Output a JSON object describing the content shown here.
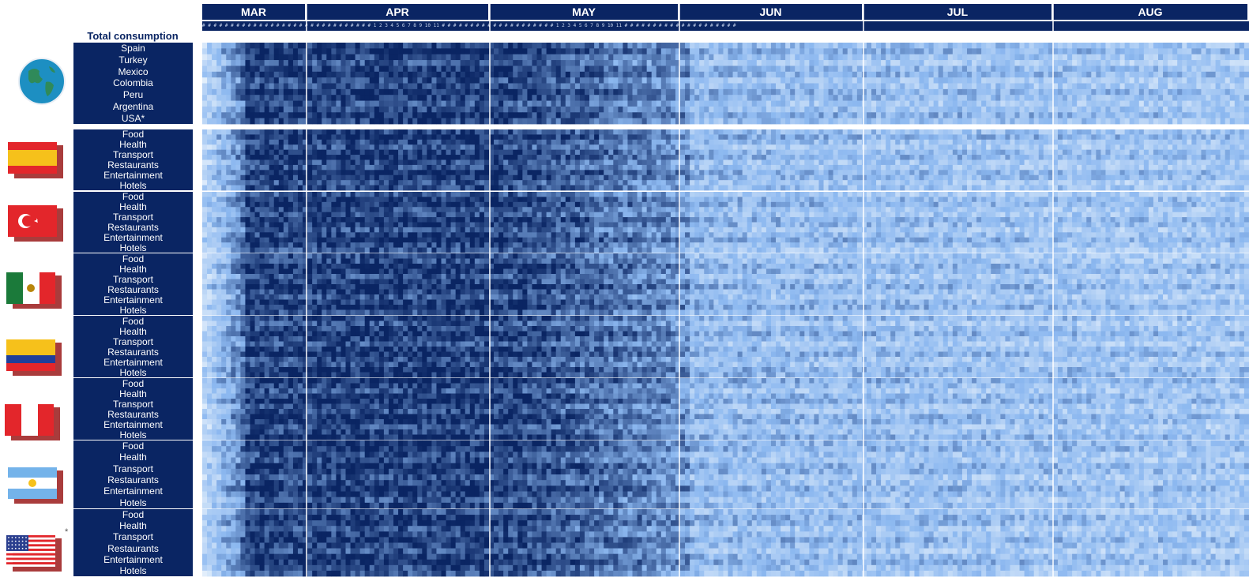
{
  "chart_data": {
    "type": "heatmap",
    "title": "",
    "months": [
      "MAR",
      "APR",
      "MAY",
      "JUN",
      "JUL",
      "AUG"
    ],
    "day_labels": "# # # # # # # # # # # # # # # # # # # # # # # # # # # # # # 1 2 3 4 5 6 7 8 9 10 11 # # # # # # # # # # # # # # # # # # # # 1 2 3 4 5 6 7 8 9 10 11 # # # # # # # # # # # # # # # # # # # #",
    "total_consumption": {
      "title": "Total consumption",
      "rows": [
        "Spain",
        "Turkey",
        "Mexico",
        "Colombia",
        "Peru",
        "Argentina",
        "USA*"
      ]
    },
    "groups": [
      {
        "country": "Spain",
        "flag": "spain-flag-icon",
        "rows": [
          "Food",
          "Health",
          "Transport",
          "Restaurants",
          "Entertainment",
          "Hotels"
        ]
      },
      {
        "country": "Turkey",
        "flag": "turkey-flag-icon",
        "rows": [
          "Food",
          "Health",
          "Transport",
          "Restaurants",
          "Entertainment",
          "Hotels"
        ]
      },
      {
        "country": "Mexico",
        "flag": "mexico-flag-icon",
        "rows": [
          "Food",
          "Health",
          "Transport",
          "Restaurants",
          "Entertainment",
          "Hotels"
        ]
      },
      {
        "country": "Colombia",
        "flag": "colombia-flag-icon",
        "rows": [
          "Food",
          "Health",
          "Transport",
          "Restaurants",
          "Entertainment",
          "Hotels"
        ]
      },
      {
        "country": "Peru",
        "flag": "peru-flag-icon",
        "rows": [
          "Food",
          "Health",
          "Transport",
          "Restaurants",
          "Entertainment",
          "Hotels"
        ]
      },
      {
        "country": "Argentina",
        "flag": "argentina-flag-icon",
        "rows": [
          "Food",
          "Health",
          "Transport",
          "Restaurants",
          "Entertainment",
          "Hotels"
        ]
      },
      {
        "country": "USA",
        "flag": "usa-flag-icon",
        "rows": [
          "Food",
          "Health",
          "Transport",
          "Restaurants",
          "Entertainment",
          "Hotels"
        ]
      }
    ],
    "usa_footnote_mark": "*",
    "color_scale": {
      "low": "#e6f1fc",
      "mid": "#8cb8f0",
      "high": "#0a2563"
    },
    "values_note_free": true
  }
}
